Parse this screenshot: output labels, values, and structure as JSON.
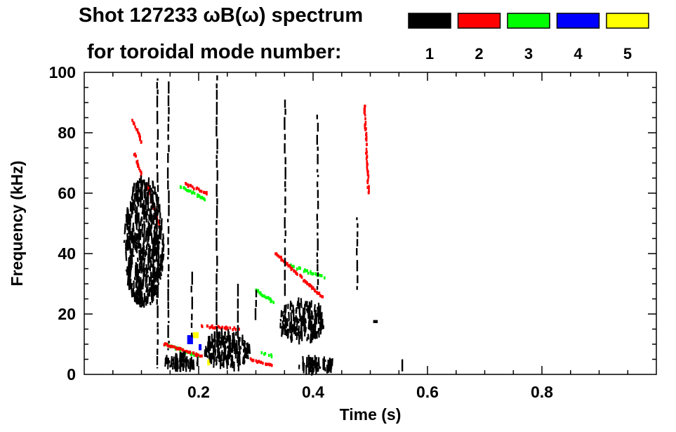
{
  "chart_data": {
    "type": "heatmap",
    "title": "Shot 127233 ωB(ω) spectrum",
    "subtitle": "for toroidal mode number:",
    "xlabel": "Time (s)",
    "ylabel": "Frequency (kHz)",
    "xlim": [
      0.0,
      1.0
    ],
    "ylim": [
      0,
      100
    ],
    "xticks": [
      0.2,
      0.4,
      0.6,
      0.8
    ],
    "xtick_labels": [
      "0.2",
      "0.4",
      "0.6",
      "0.8"
    ],
    "yticks": [
      0,
      20,
      40,
      60,
      80,
      100
    ],
    "ytick_labels": [
      "0",
      "20",
      "40",
      "60",
      "80",
      "100"
    ],
    "legend": [
      {
        "mode": "1",
        "color": "#000000"
      },
      {
        "mode": "2",
        "color": "#ff0000"
      },
      {
        "mode": "3",
        "color": "#00ff00"
      },
      {
        "mode": "4",
        "color": "#0000ff"
      },
      {
        "mode": "5",
        "color": "#ffff00"
      }
    ],
    "features": [
      {
        "mode": "1",
        "kind": "blob",
        "t": [
          0.07,
          0.14
        ],
        "f": [
          22,
          65
        ],
        "desc": "broadband n=1 activity"
      },
      {
        "mode": "1",
        "kind": "blob",
        "t": [
          0.21,
          0.29
        ],
        "f": [
          2,
          14
        ],
        "desc": "low-frequency n=1 activity"
      },
      {
        "mode": "1",
        "kind": "blob",
        "t": [
          0.34,
          0.42
        ],
        "f": [
          11,
          24
        ],
        "desc": "n=1 burst"
      },
      {
        "mode": "1",
        "kind": "blob",
        "t": [
          0.14,
          0.2
        ],
        "f": [
          2,
          6
        ]
      },
      {
        "mode": "1",
        "kind": "blob",
        "t": [
          0.37,
          0.44
        ],
        "f": [
          1,
          5
        ]
      },
      {
        "mode": "1",
        "kind": "vline",
        "t": 0.128,
        "f": [
          2,
          98
        ]
      },
      {
        "mode": "1",
        "kind": "vline",
        "t": 0.147,
        "f": [
          8,
          97
        ]
      },
      {
        "mode": "1",
        "kind": "vline",
        "t": 0.232,
        "f": [
          12,
          99
        ]
      },
      {
        "mode": "1",
        "kind": "vline",
        "t": 0.351,
        "f": [
          26,
          91
        ]
      },
      {
        "mode": "1",
        "kind": "vline",
        "t": 0.408,
        "f": [
          28,
          86
        ]
      },
      {
        "mode": "1",
        "kind": "vline",
        "t": 0.477,
        "f": [
          28,
          52
        ]
      },
      {
        "mode": "1",
        "kind": "vline",
        "t": 0.188,
        "f": [
          12,
          34
        ]
      },
      {
        "mode": "1",
        "kind": "vline",
        "t": 0.268,
        "f": [
          12,
          30
        ]
      },
      {
        "mode": "1",
        "kind": "vline",
        "t": 0.3,
        "f": [
          18,
          28
        ]
      },
      {
        "mode": "1",
        "kind": "vline",
        "t": 0.555,
        "f": [
          1,
          5
        ]
      },
      {
        "mode": "1",
        "kind": "dash",
        "t": [
          0.505,
          0.513
        ],
        "f": [
          17,
          18
        ]
      },
      {
        "mode": "2",
        "kind": "chirp",
        "t": [
          0.335,
          0.42
        ],
        "f": [
          40,
          25
        ],
        "desc": "downward-chirping n=2 mode"
      },
      {
        "mode": "2",
        "kind": "chirp",
        "t": [
          0.205,
          0.27
        ],
        "f": [
          16,
          15
        ]
      },
      {
        "mode": "2",
        "kind": "chirp",
        "t": [
          0.14,
          0.205
        ],
        "f": [
          10,
          6
        ]
      },
      {
        "mode": "2",
        "kind": "chirp",
        "t": [
          0.175,
          0.215
        ],
        "f": [
          63,
          60
        ]
      },
      {
        "mode": "2",
        "kind": "chirp",
        "t": [
          0.085,
          0.1
        ],
        "f": [
          84,
          77
        ]
      },
      {
        "mode": "2",
        "kind": "chirp",
        "t": [
          0.088,
          0.1
        ],
        "f": [
          73,
          66
        ]
      },
      {
        "mode": "2",
        "kind": "chirp",
        "t": [
          0.49,
          0.497
        ],
        "f": [
          89,
          60
        ]
      },
      {
        "mode": "2",
        "kind": "chirp",
        "t": [
          0.11,
          0.13
        ],
        "f": [
          63,
          50
        ]
      },
      {
        "mode": "2",
        "kind": "chirp",
        "t": [
          0.29,
          0.33
        ],
        "f": [
          5,
          3
        ]
      },
      {
        "mode": "3",
        "kind": "chirp",
        "t": [
          0.36,
          0.42
        ],
        "f": [
          36,
          32
        ]
      },
      {
        "mode": "3",
        "kind": "chirp",
        "t": [
          0.168,
          0.212
        ],
        "f": [
          62,
          58
        ]
      },
      {
        "mode": "3",
        "kind": "chirp",
        "t": [
          0.14,
          0.2
        ],
        "f": [
          10,
          6
        ]
      },
      {
        "mode": "3",
        "kind": "chirp",
        "t": [
          0.3,
          0.33
        ],
        "f": [
          28,
          24
        ]
      },
      {
        "mode": "3",
        "kind": "chirp",
        "t": [
          0.31,
          0.33
        ],
        "f": [
          7,
          6
        ]
      },
      {
        "mode": "4",
        "kind": "dash",
        "t": [
          0.18,
          0.19
        ],
        "f": [
          10,
          13
        ]
      },
      {
        "mode": "4",
        "kind": "dash",
        "t": [
          0.2,
          0.205
        ],
        "f": [
          8,
          10
        ]
      },
      {
        "mode": "5",
        "kind": "dash",
        "t": [
          0.19,
          0.2
        ],
        "f": [
          12,
          14
        ]
      },
      {
        "mode": "5",
        "kind": "dash",
        "t": [
          0.215,
          0.22
        ],
        "f": [
          3,
          5
        ]
      }
    ]
  }
}
